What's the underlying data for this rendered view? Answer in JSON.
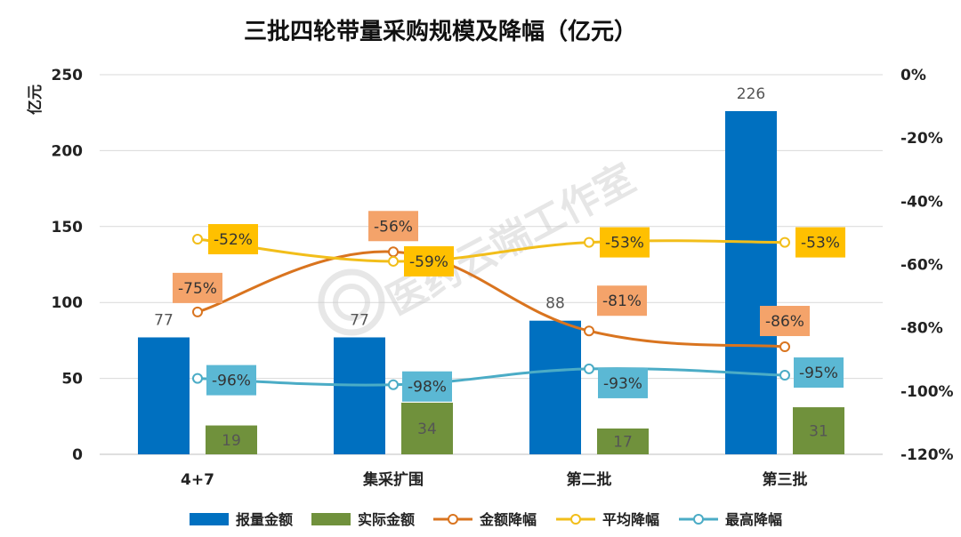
{
  "chart_data": {
    "type": "bar",
    "title": "三批四轮带量采购规模及降幅（亿元）",
    "ylabel": "亿元",
    "ylim": [
      0,
      250
    ],
    "y_ticks": [
      "0",
      "50",
      "100",
      "150",
      "200",
      "250"
    ],
    "y2lim": [
      -120,
      0
    ],
    "y2_ticks": [
      "0%",
      "-20%",
      "-40%",
      "-60%",
      "-80%",
      "-100%",
      "-120%"
    ],
    "categories": [
      "4+7",
      "集采扩围",
      "第二批",
      "第三批"
    ],
    "series": [
      {
        "name": "报量金额",
        "kind": "bar",
        "color": "#0070C0",
        "values": [
          77,
          77,
          88,
          226
        ],
        "labels": [
          "77",
          "77",
          "88",
          "226"
        ]
      },
      {
        "name": "实际金额",
        "kind": "bar",
        "color": "#70913C",
        "values": [
          19,
          34,
          17,
          31
        ],
        "labels": [
          "19",
          "34",
          "17",
          "31"
        ]
      },
      {
        "name": "金额降幅",
        "kind": "line",
        "axis": "right",
        "color": "#D9741F",
        "label_color": "#F4A36A",
        "values": [
          -75,
          -56,
          -81,
          -86
        ],
        "labels": [
          "-75%",
          "-56%",
          "-81%",
          "-86%"
        ]
      },
      {
        "name": "平均降幅",
        "kind": "line",
        "axis": "right",
        "color": "#F2BE1A",
        "label_color": "#FFC000",
        "values": [
          -52,
          -59,
          -53,
          -53
        ],
        "labels": [
          "-52%",
          "-59%",
          "-53%",
          "-53%"
        ]
      },
      {
        "name": "最高降幅",
        "kind": "line",
        "axis": "right",
        "color": "#4BACC6",
        "label_color": "#5BB8D4",
        "values": [
          -96,
          -98,
          -93,
          -95
        ],
        "labels": [
          "-96%",
          "-98%",
          "-93%",
          "-95%"
        ]
      }
    ],
    "watermark": "医药云端工作室"
  }
}
